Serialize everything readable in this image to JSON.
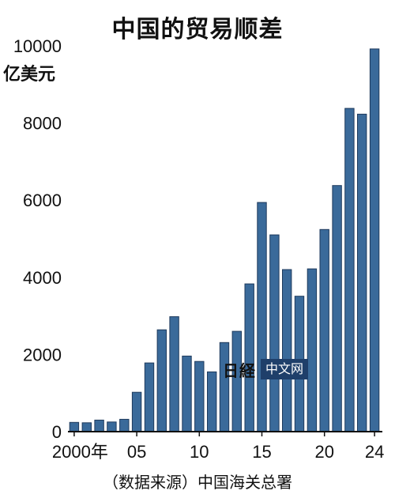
{
  "title": "中国的贸易顺差",
  "unit": "亿美元",
  "source": "（数据来源）中国海关总署",
  "watermark": {
    "logo": "日経",
    "tag": "中文网"
  },
  "colors": {
    "bar": "#3a6a9a",
    "bar_edge": "#1e3a5c",
    "axis": "#111111"
  },
  "chart_data": {
    "type": "bar",
    "title": "中国的贸易顺差",
    "ylabel": "亿美元",
    "xlabel": "",
    "ylim": [
      0,
      10000
    ],
    "yticks": [
      0,
      2000,
      4000,
      6000,
      8000,
      10000
    ],
    "categories": [
      2000,
      2001,
      2002,
      2003,
      2004,
      2005,
      2006,
      2007,
      2008,
      2009,
      2010,
      2011,
      2012,
      2013,
      2014,
      2015,
      2016,
      2017,
      2018,
      2019,
      2020,
      2021,
      2022,
      2023,
      2024
    ],
    "values": [
      240,
      230,
      300,
      250,
      320,
      1020,
      1780,
      2640,
      2980,
      1960,
      1820,
      1550,
      2310,
      2600,
      3830,
      5940,
      5100,
      4200,
      3510,
      4220,
      5240,
      6380,
      8380,
      8230,
      9920
    ],
    "xtick_labels": [
      {
        "index": 0,
        "label": "2000年"
      },
      {
        "index": 5,
        "label": "05"
      },
      {
        "index": 10,
        "label": "10"
      },
      {
        "index": 15,
        "label": "15"
      },
      {
        "index": 20,
        "label": "20"
      },
      {
        "index": 24,
        "label": "24"
      }
    ]
  }
}
